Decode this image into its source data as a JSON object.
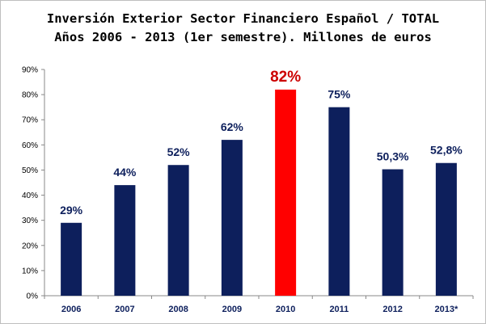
{
  "chart_data": {
    "type": "bar",
    "title_line1": "Inversión Exterior Sector Financiero Español / TOTAL",
    "title_line2": "Años 2006 - 2013 (1er semestre). Millones de euros",
    "categories": [
      "2006",
      "2007",
      "2008",
      "2009",
      "2010",
      "2011",
      "2012",
      "2013*"
    ],
    "values": [
      29,
      44,
      52,
      62,
      82,
      75,
      50.3,
      52.8
    ],
    "data_labels": [
      "29%",
      "44%",
      "52%",
      "62%",
      "82%",
      "75%",
      "50,3%",
      "52,8%"
    ],
    "highlight_index": 4,
    "ylim": [
      0,
      90
    ],
    "yticks": [
      0,
      10,
      20,
      30,
      40,
      50,
      60,
      70,
      80,
      90
    ],
    "ytick_labels": [
      "0%",
      "10%",
      "20%",
      "30%",
      "40%",
      "50%",
      "60%",
      "70%",
      "80%",
      "90%"
    ],
    "xlabel": "",
    "ylabel": "",
    "grid": false,
    "legend": "none",
    "colors": {
      "bar": "#0d1f5c",
      "highlight": "#ff0000",
      "label": "#0d1f5c",
      "highlight_label": "#cc0000"
    }
  }
}
